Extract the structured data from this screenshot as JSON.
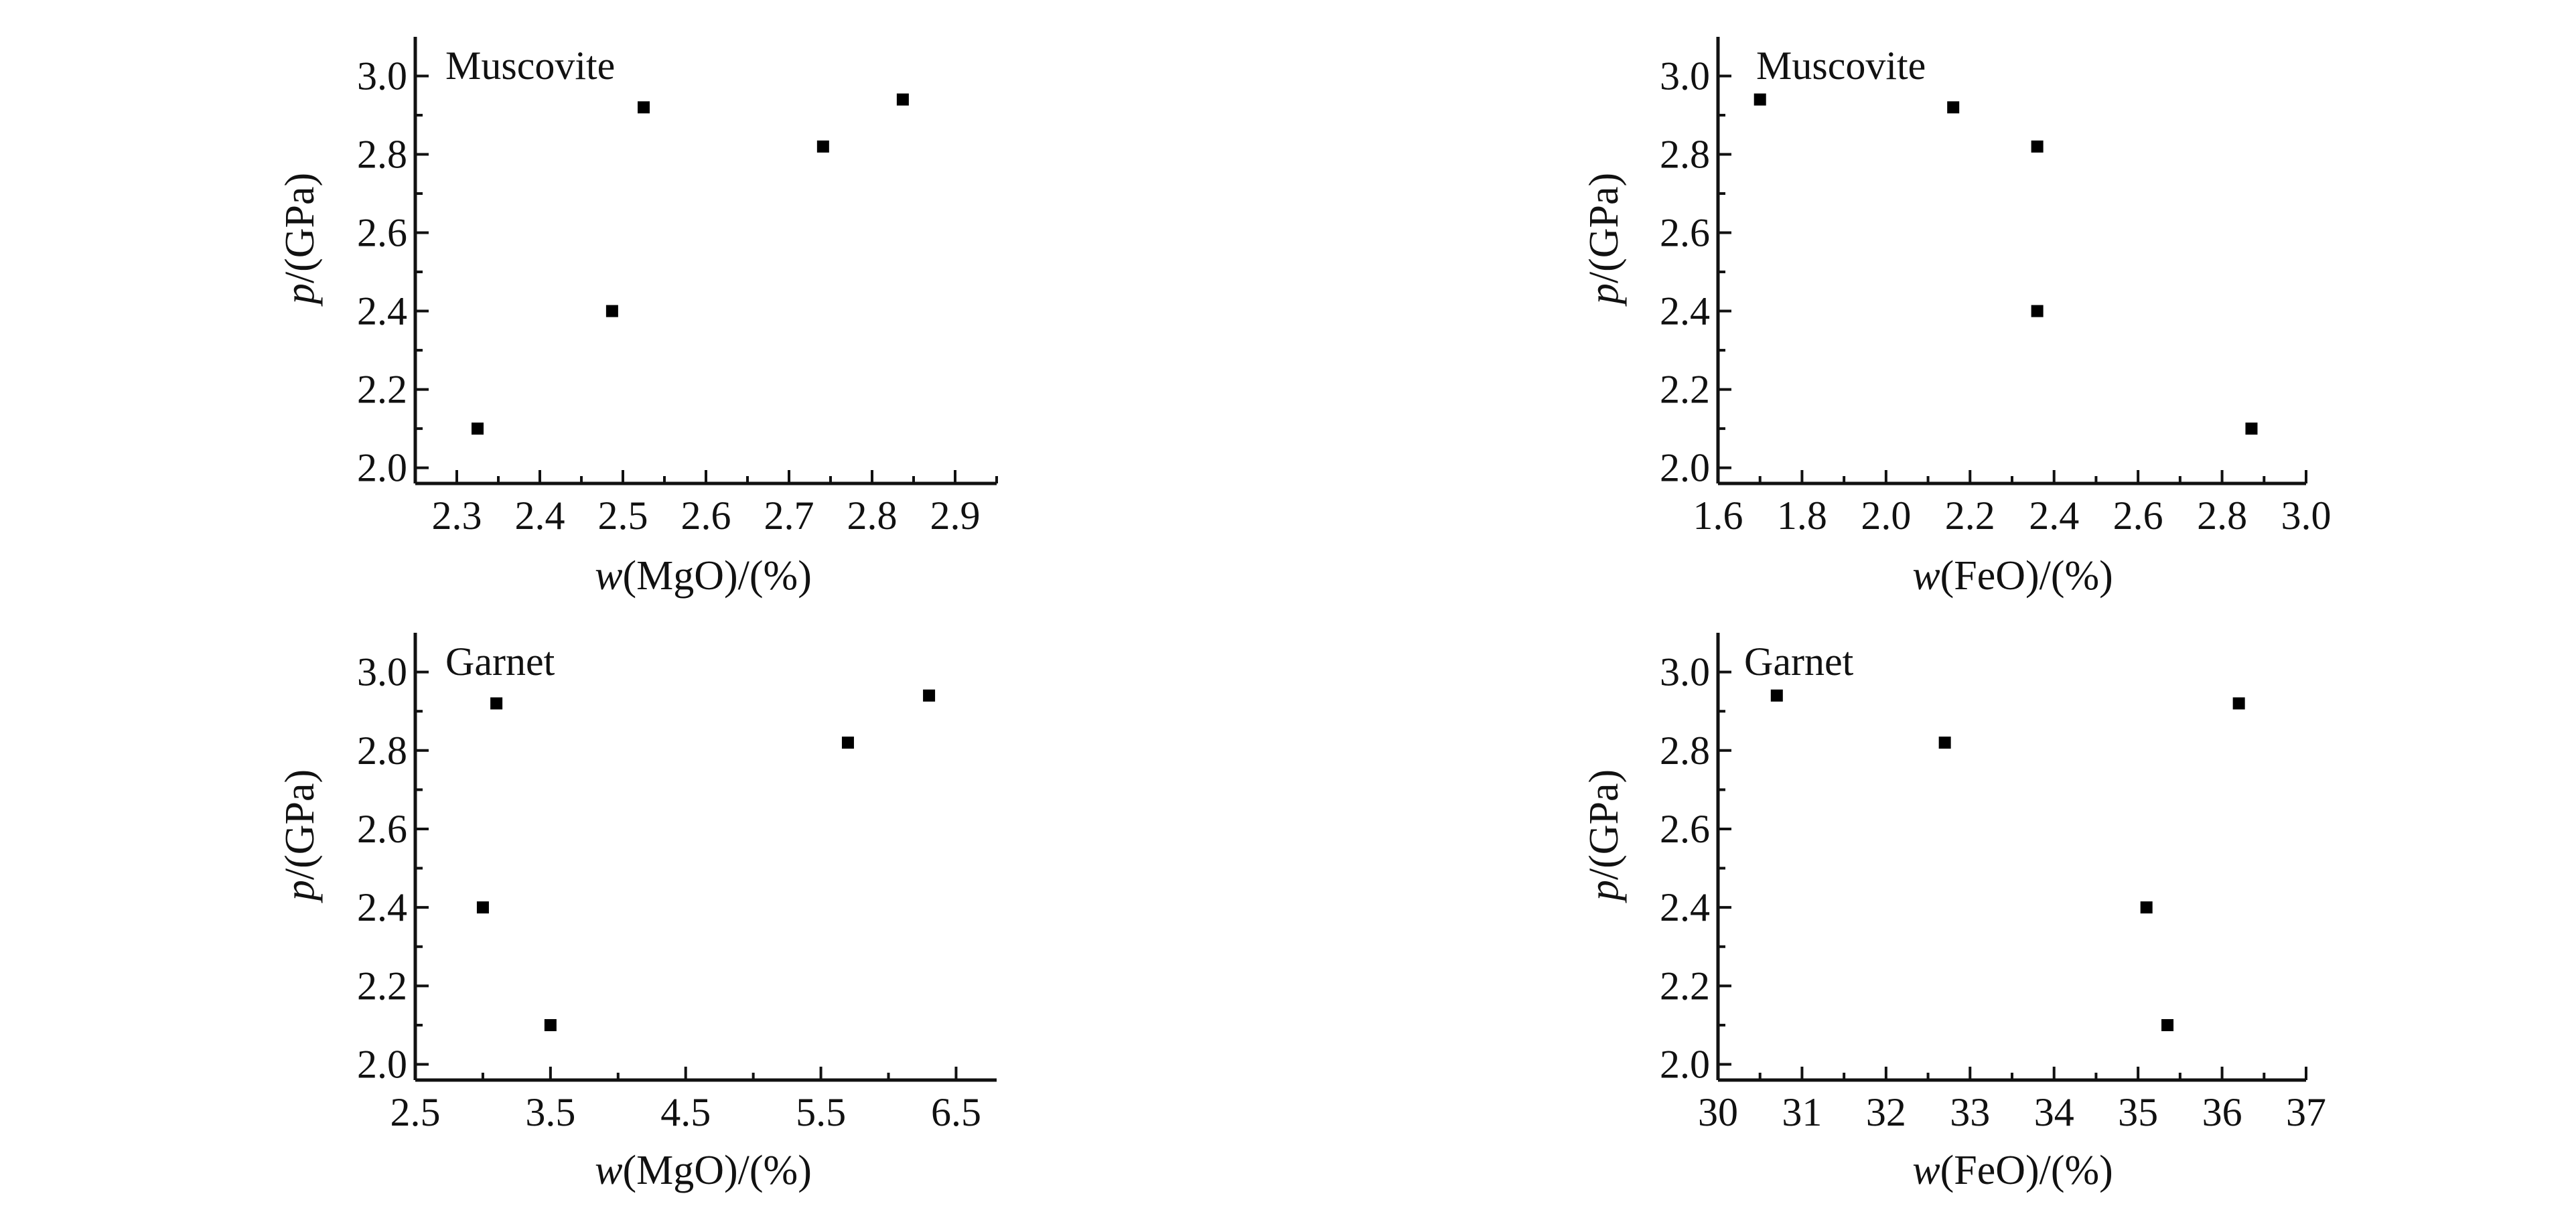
{
  "chart_data": [
    {
      "type": "scatter",
      "title": "Muscovite",
      "xlabel_var": "w",
      "xlabel_rest": "(MgO)/(%)",
      "ylabel_var": "p",
      "ylabel_rest": "/(GPa)",
      "xlim": [
        2.25,
        2.95
      ],
      "ylim": [
        1.96,
        3.1
      ],
      "xticks": [
        "2.3",
        "2.4",
        "2.5",
        "2.6",
        "2.7",
        "2.8",
        "2.9"
      ],
      "yticks": [
        "2.0",
        "2.2",
        "2.4",
        "2.6",
        "2.8",
        "3.0"
      ],
      "x": [
        2.325,
        2.487,
        2.525,
        2.741,
        2.837
      ],
      "y": [
        2.1,
        2.4,
        2.92,
        2.82,
        2.94
      ]
    },
    {
      "type": "scatter",
      "title": "Muscovite",
      "xlabel_var": "w",
      "xlabel_rest": "(FeO)/(%)",
      "ylabel_var": "p",
      "ylabel_rest": "/(GPa)",
      "xlim": [
        1.6,
        3.0
      ],
      "ylim": [
        1.96,
        3.1
      ],
      "xticks": [
        "1.6",
        "1.8",
        "2.0",
        "2.2",
        "2.4",
        "2.6",
        "2.8",
        "3.0"
      ],
      "yticks": [
        "2.0",
        "2.2",
        "2.4",
        "2.6",
        "2.8",
        "3.0"
      ],
      "x": [
        1.7,
        2.16,
        2.36,
        2.36,
        2.87
      ],
      "y": [
        2.94,
        2.92,
        2.82,
        2.4,
        2.1
      ]
    },
    {
      "type": "scatter",
      "title": "Garnet",
      "xlabel_var": "w",
      "xlabel_rest": "(MgO)/(%)",
      "ylabel_var": "p",
      "ylabel_rest": "/(GPa)",
      "xlim": [
        2.5,
        6.8
      ],
      "ylim": [
        1.96,
        3.1
      ],
      "xticks": [
        "2.5",
        "3.5",
        "4.5",
        "5.5",
        "6.5"
      ],
      "yticks": [
        "2.0",
        "2.2",
        "2.4",
        "2.6",
        "2.8",
        "3.0"
      ],
      "x": [
        3.0,
        3.1,
        3.5,
        5.7,
        6.3
      ],
      "y": [
        2.4,
        2.92,
        2.1,
        2.82,
        2.94
      ]
    },
    {
      "type": "scatter",
      "title": "Garnet",
      "xlabel_var": "w",
      "xlabel_rest": "(FeO)/(%)",
      "ylabel_var": "p",
      "ylabel_rest": "/(GPa)",
      "xlim": [
        30.0,
        37.0
      ],
      "ylim": [
        1.96,
        3.1
      ],
      "xticks": [
        "30",
        "31",
        "32",
        "33",
        "34",
        "35",
        "36",
        "37"
      ],
      "yticks": [
        "2.0",
        "2.2",
        "2.4",
        "2.6",
        "2.8",
        "3.0"
      ],
      "x": [
        30.7,
        32.7,
        35.1,
        35.35,
        36.2
      ],
      "y": [
        2.94,
        2.82,
        2.4,
        2.1,
        2.92
      ]
    }
  ]
}
